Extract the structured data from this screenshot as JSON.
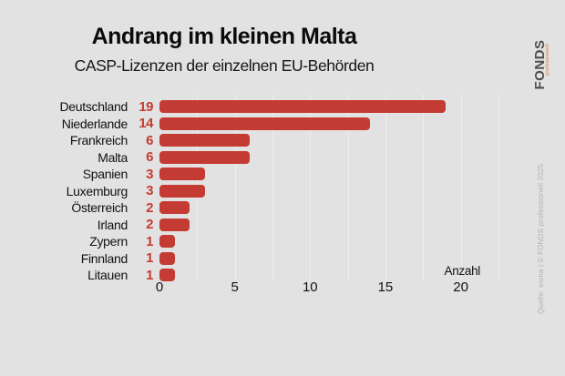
{
  "title": "Andrang im kleinen Malta",
  "subtitle": "CASP-Lizenzen der einzelnen EU-Behörden",
  "logo": {
    "name": "FONDS",
    "sub": "professionell"
  },
  "source": "Quelle: esma | © FONDS professionell 2025",
  "colors": {
    "background": "#e3e2e2",
    "bar": "#c43b33",
    "value_label": "#c43b33",
    "gridline": "#efeeee"
  },
  "chart_data": {
    "type": "bar",
    "orientation": "horizontal",
    "title": "Andrang im kleinen Malta",
    "subtitle": "CASP-Lizenzen der einzelnen EU-Behörden",
    "categories": [
      "Deutschland",
      "Niederlande",
      "Frankreich",
      "Malta",
      "Spanien",
      "Luxemburg",
      "Österreich",
      "Irland",
      "Zypern",
      "Finnland",
      "Litauen"
    ],
    "values": [
      19,
      14,
      6,
      6,
      3,
      3,
      2,
      2,
      1,
      1,
      1
    ],
    "xlabel": "Anzahl",
    "ylabel": "",
    "xlim": [
      0,
      20
    ],
    "xticks": [
      0,
      5,
      10,
      15,
      20
    ],
    "grid": true,
    "gridline_step": 2.5,
    "legend": false
  }
}
